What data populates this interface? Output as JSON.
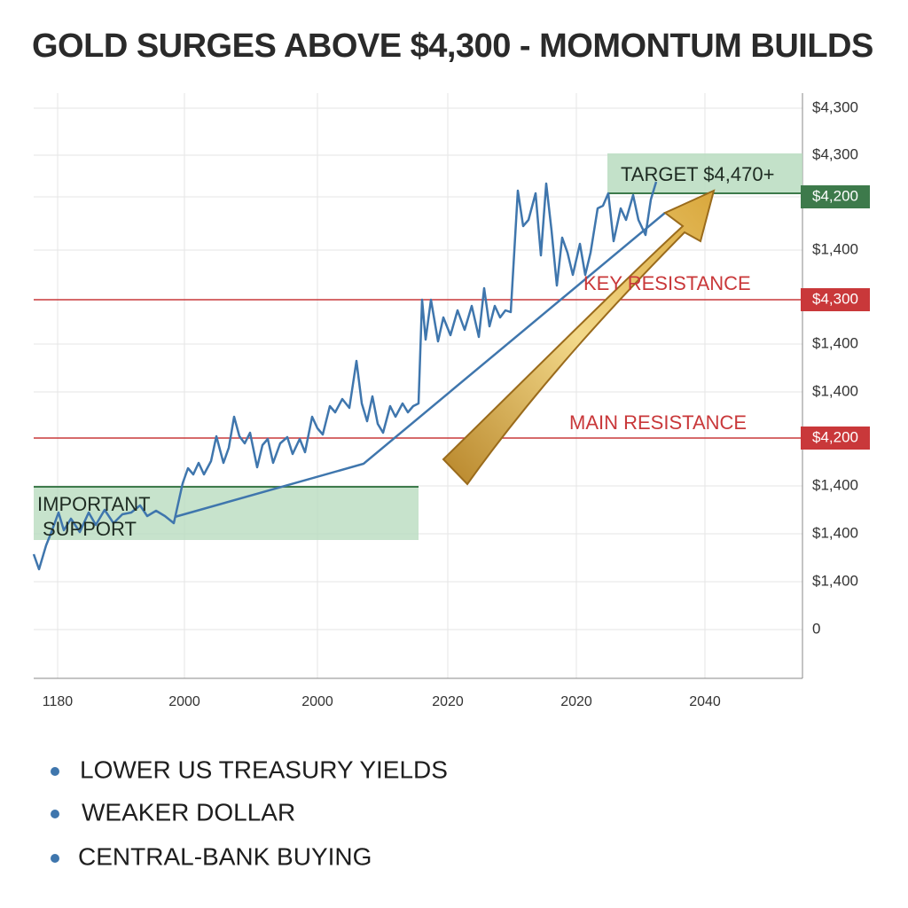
{
  "title": "GOLD SURGES ABOVE $4,300 - MOMONTUM BUILDS",
  "y_axis_labels": [
    "$4,300",
    "$4,300",
    "$4,200",
    "$1,400",
    "$4,300",
    "$1,400",
    "$1,400",
    "$4,200",
    "$1,400",
    "$1,400",
    "$1,400",
    "0"
  ],
  "x_axis_labels": [
    "1180",
    "2000",
    "2000",
    "2020",
    "2020",
    "2040"
  ],
  "annotations": {
    "target": "TARGET $4,470+",
    "key_resistance": "KEY RESISTANCE",
    "main_resistance": "MAIN RESISTANCE",
    "support": [
      "IMPORTANT",
      "SUPPORT"
    ]
  },
  "bullets": [
    "LOWER US TREASURY YIELDS",
    "WEAKER DOLLAR",
    "CENTRAL-BANK BUYING"
  ]
}
